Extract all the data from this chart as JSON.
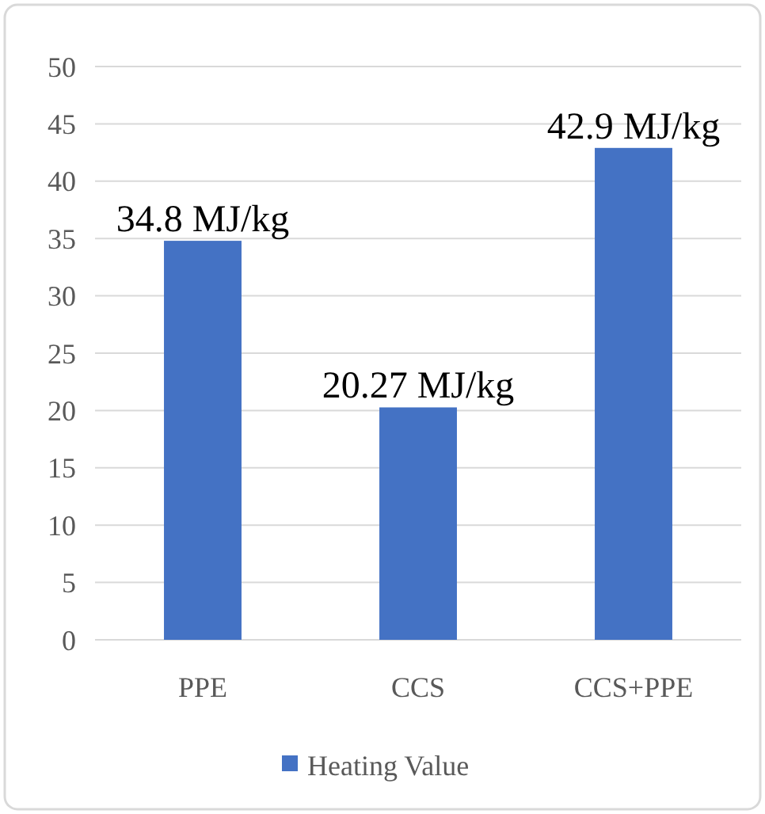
{
  "chart_data": {
    "type": "bar",
    "categories": [
      "PPE",
      "CCS",
      "CCS+PPE"
    ],
    "series": [
      {
        "name": "Heating Value",
        "color": "#4472c4",
        "values": [
          34.8,
          20.27,
          42.9
        ],
        "value_labels": [
          "34.8 MJ/kg",
          "20.27 MJ/kg",
          "42.9 MJ/kg"
        ]
      }
    ],
    "ylim": [
      0,
      50
    ],
    "yticks": [
      0,
      5,
      10,
      15,
      20,
      25,
      30,
      35,
      40,
      45,
      50
    ],
    "grid": "y",
    "legend": "bottom"
  }
}
